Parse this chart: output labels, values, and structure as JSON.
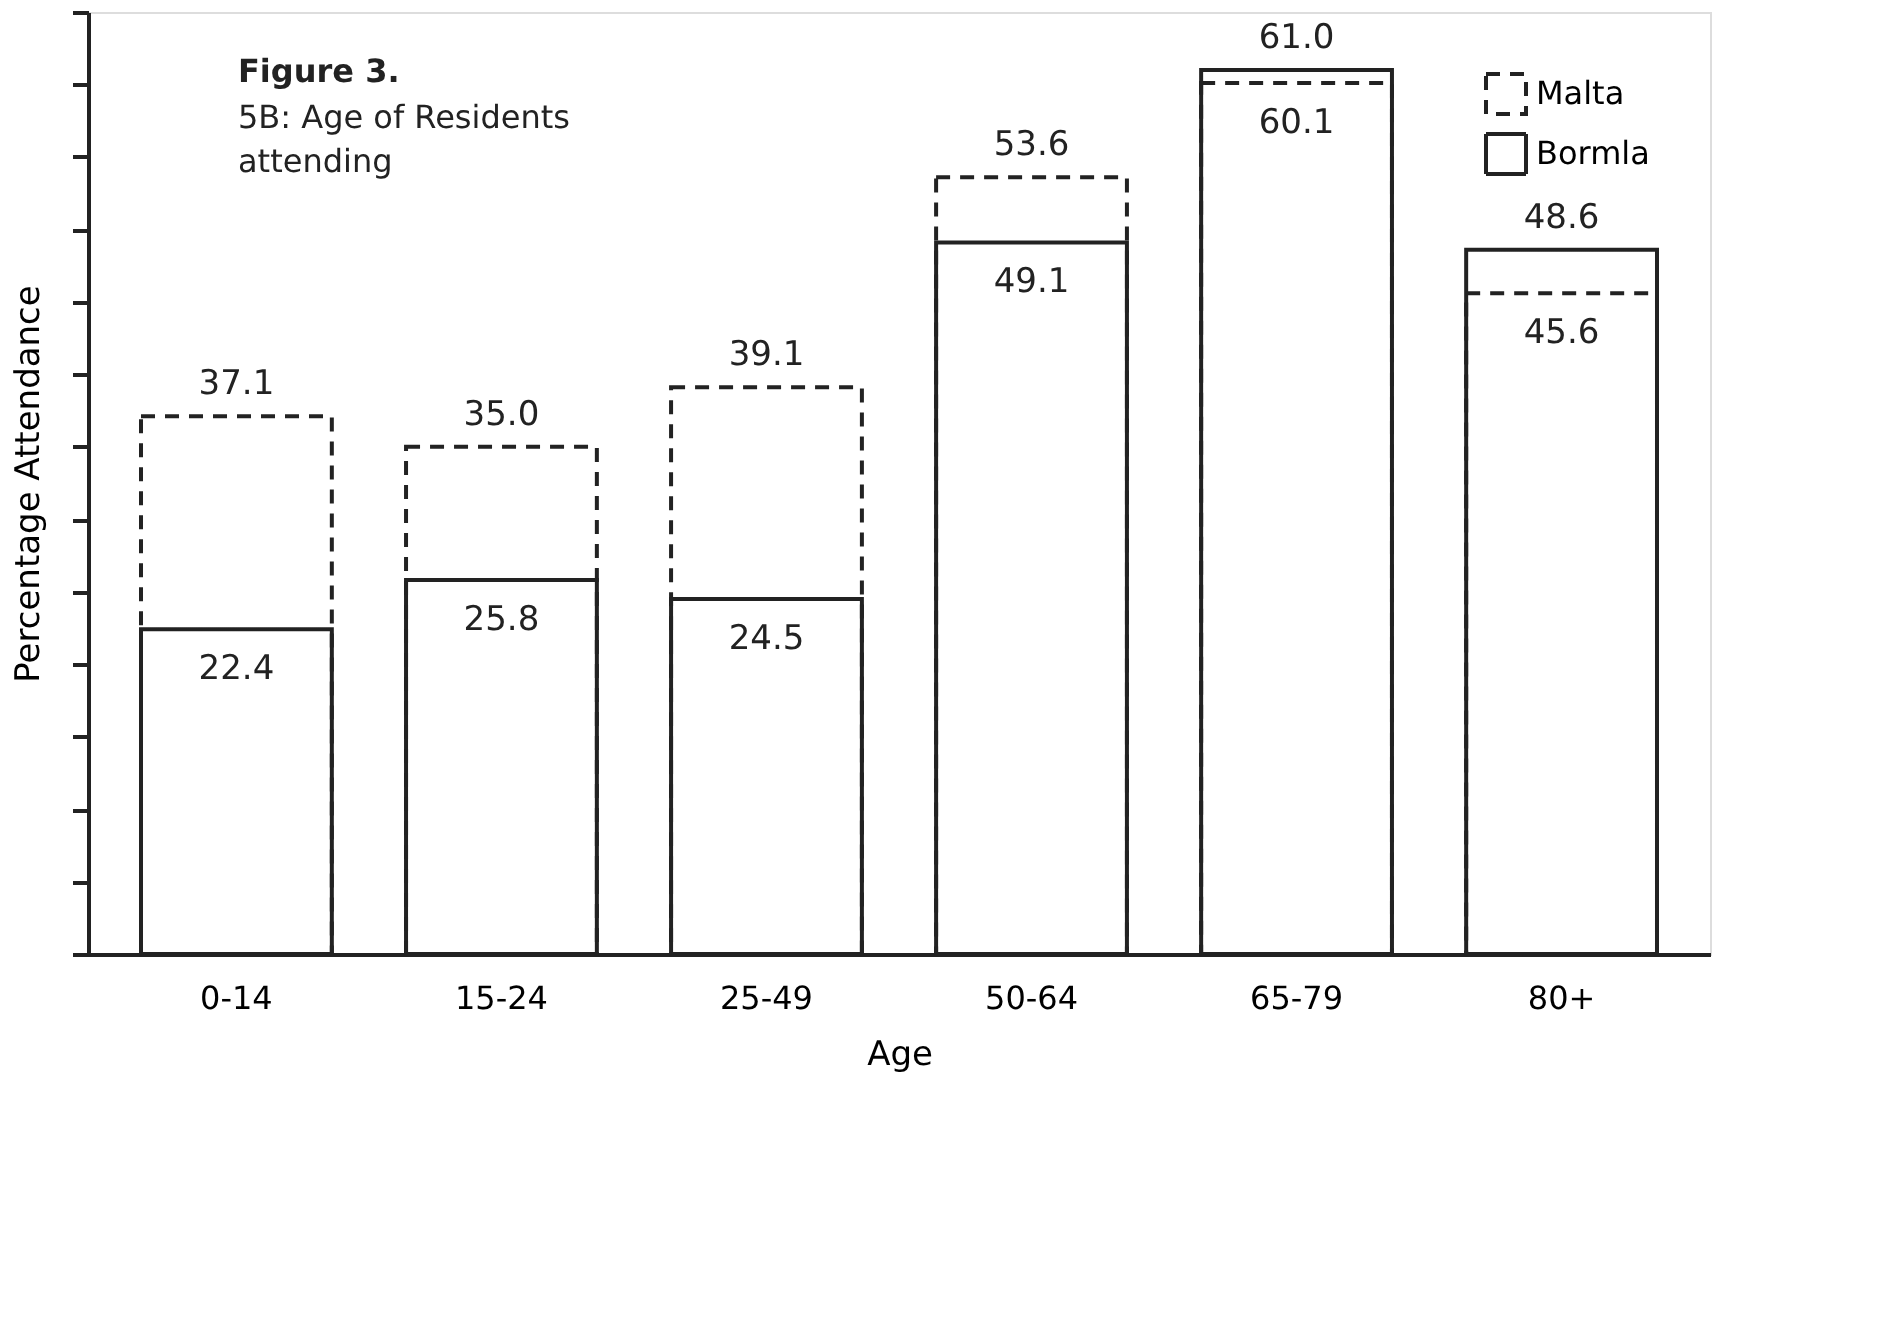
{
  "chart_data": {
    "type": "bar",
    "title": "Figure 3.",
    "subtitle": "5B: Age of Residents\nattending",
    "xlabel": "Age",
    "ylabel": "Percentage Attendance",
    "categories": [
      "0-14",
      "15-24",
      "25-49",
      "50-64",
      "65-79",
      "80+"
    ],
    "series": [
      {
        "name": "Malta",
        "color": "#222222",
        "line_style": "dashed",
        "values": [
          37.1,
          35.0,
          39.1,
          53.6,
          60.1,
          45.6
        ],
        "value_labels": [
          "37.1",
          "35.0",
          "39.1",
          "53.6",
          "60.1",
          "45.6"
        ]
      },
      {
        "name": "Bormla",
        "color": "#222222",
        "line_style": "solid",
        "values": [
          22.4,
          25.8,
          24.5,
          49.1,
          61.0,
          48.6
        ],
        "value_labels": [
          "22.4",
          "25.8",
          "24.5",
          "49.1",
          "61.0",
          "48.6"
        ]
      }
    ],
    "tick_labels": "x",
    "legend": "top right"
  }
}
